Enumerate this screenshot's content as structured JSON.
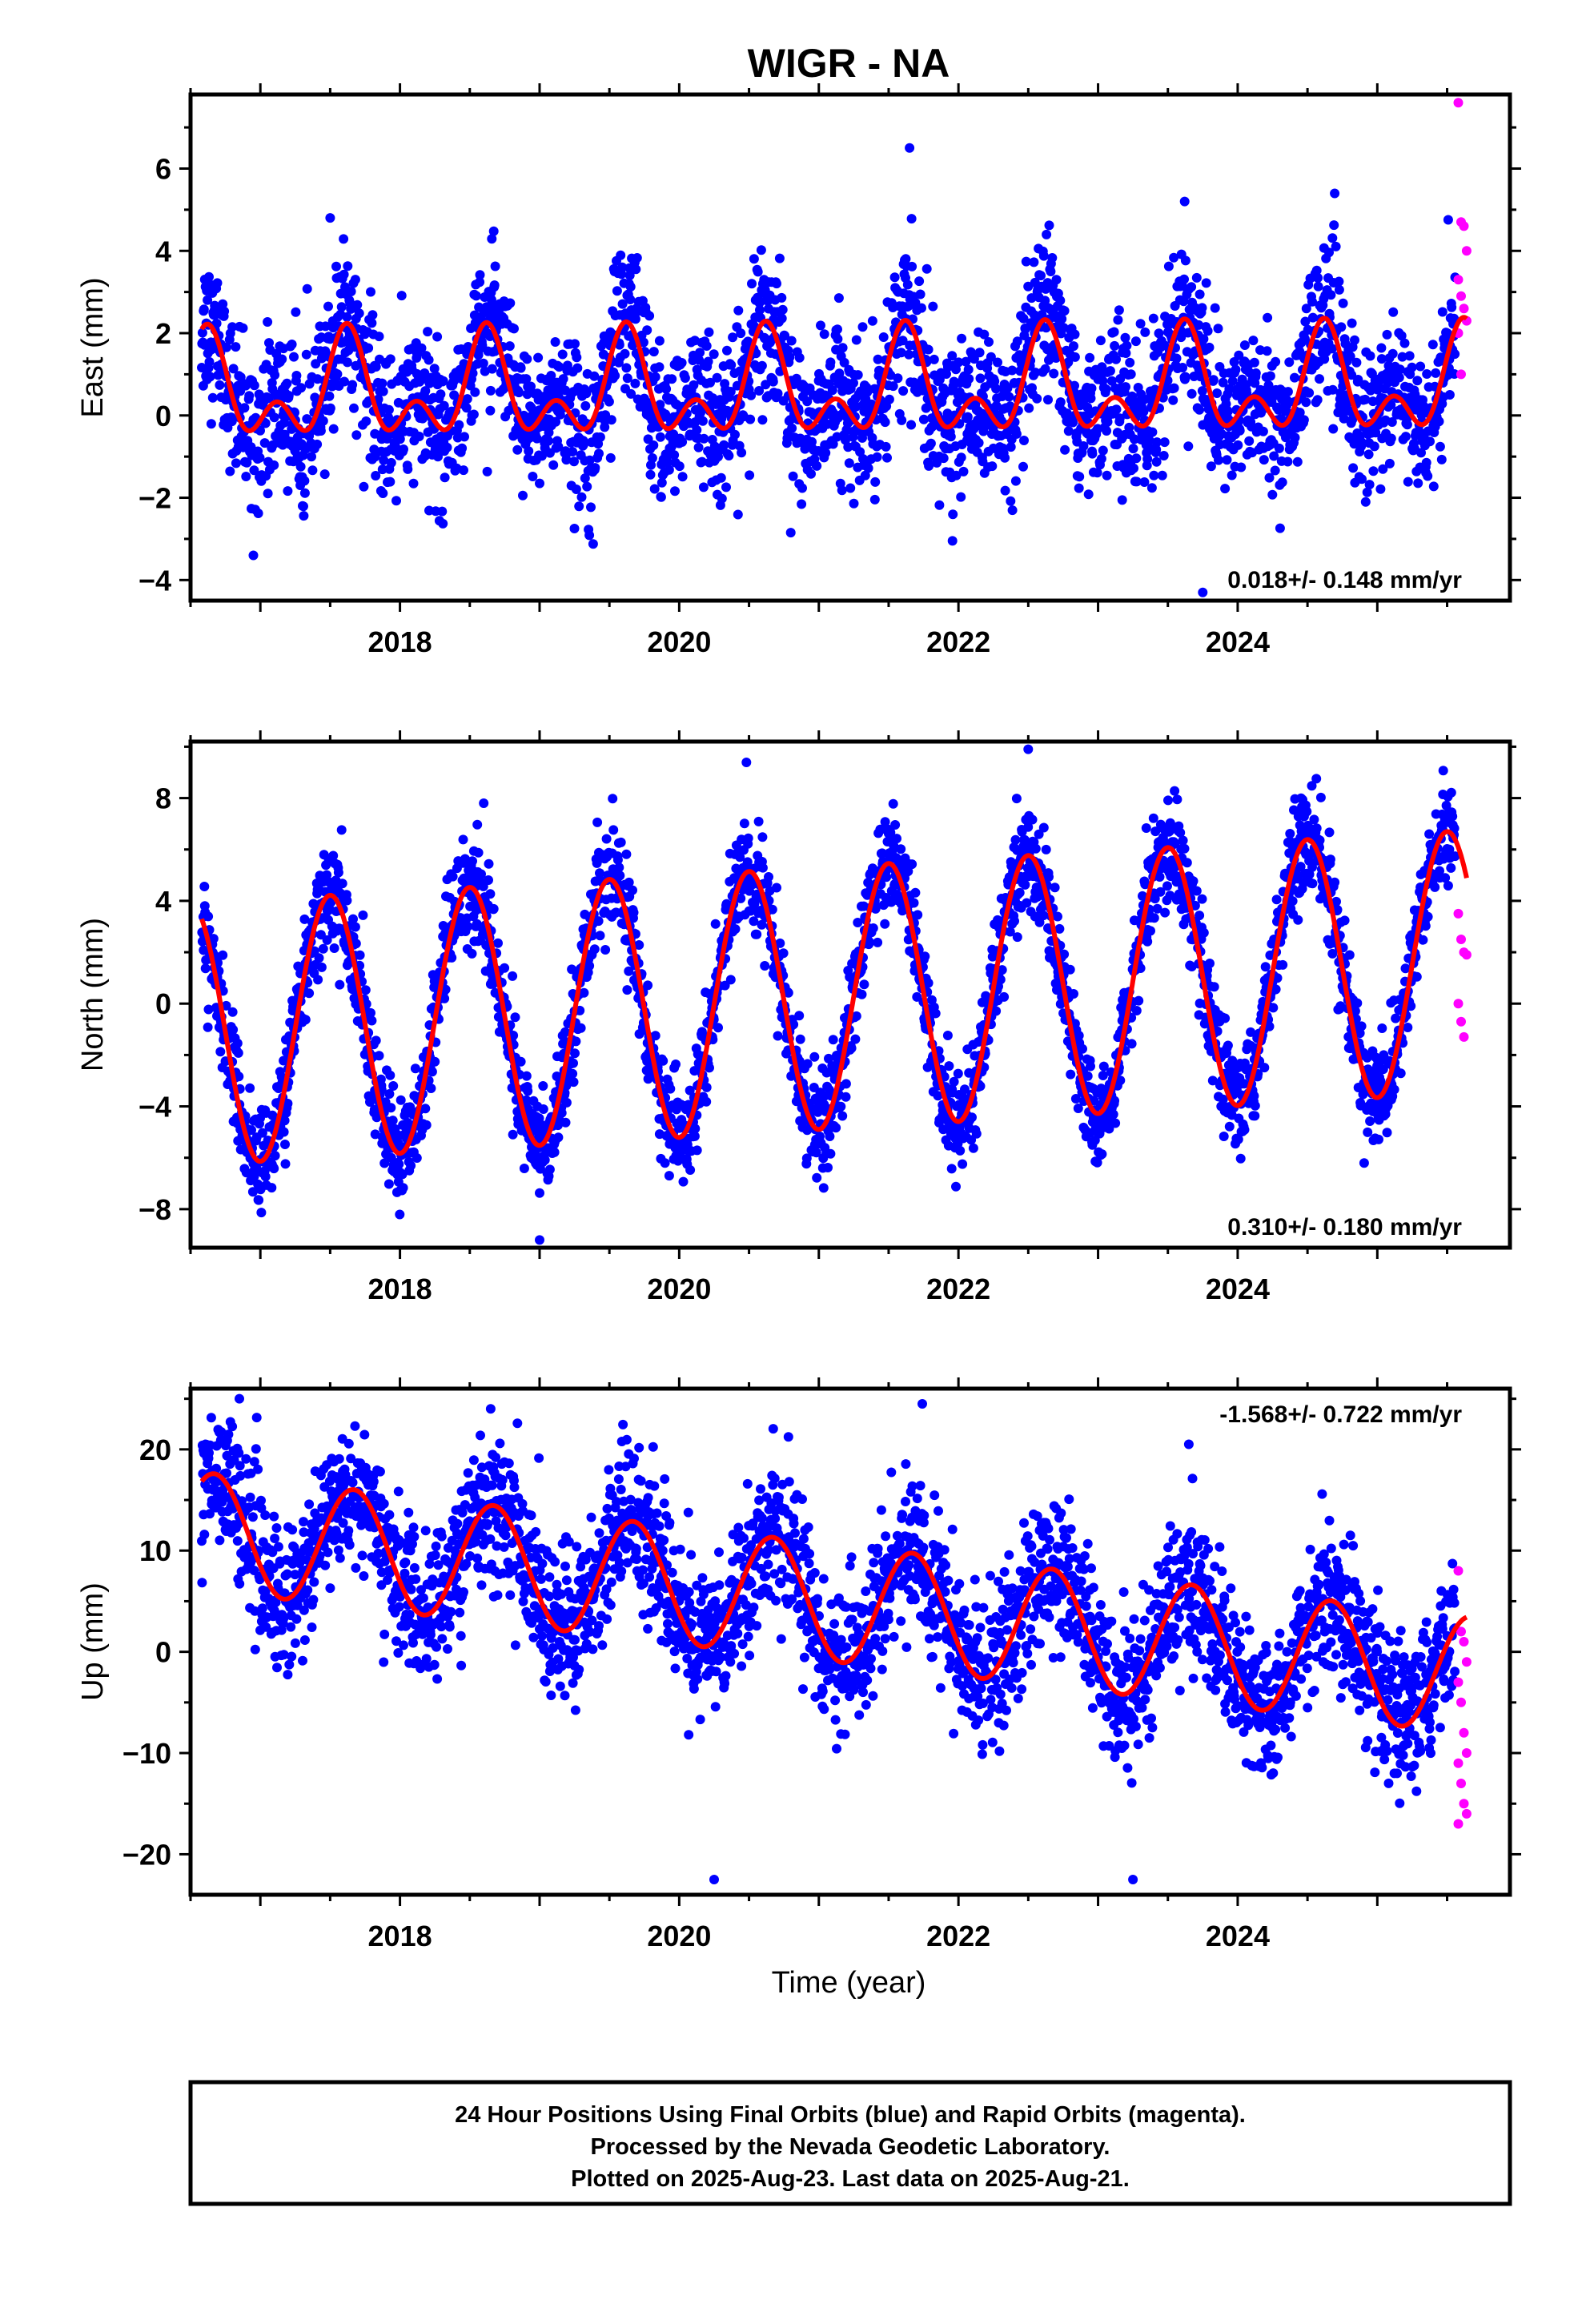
{
  "title": "WIGR - NA",
  "xlabel": "Time (year)",
  "colors": {
    "final": "#0000ff",
    "rapid": "#ff00ff",
    "fit": "#ff0000"
  },
  "footer": {
    "line1": "24 Hour Positions Using Final Orbits (blue) and Rapid Orbits (magenta).",
    "line2": "Processed by the Nevada Geodetic Laboratory.",
    "line3": "Plotted on 2025-Aug-23. Last data on 2025-Aug-21."
  },
  "chart_data": [
    {
      "type": "scatter",
      "component": "east",
      "ylabel": "East (mm)",
      "rate_label": "0.018+/- 0.148 mm/yr",
      "rate_position": "bottom-right",
      "xlim": [
        2016.5,
        2025.95
      ],
      "ylim": [
        -4.5,
        7.8
      ],
      "xticks": [
        2018,
        2020,
        2022,
        2024
      ],
      "yticks": [
        -4,
        -2,
        0,
        2,
        4,
        6
      ],
      "x_start": 2016.58,
      "final_end": 2025.56,
      "rapid_x_range": [
        2025.58,
        2025.64
      ],
      "fit": {
        "offset": 0.6,
        "trend_mm_per_yr": 0.018,
        "annual_amp": 0.95,
        "annual_peak": 0.62,
        "semiannual_amp": 0.75,
        "semiannual_peak": 0.62
      },
      "scatter_sd": 0.9,
      "rapid_values": [
        7.6,
        4.7,
        4.6,
        4.0,
        3.3,
        2.9,
        2.6,
        2.3,
        2.0,
        1.0
      ],
      "notable_points": [
        [
          2021.65,
          6.5
        ],
        [
          2023.62,
          5.2
        ],
        [
          2017.5,
          4.8
        ],
        [
          2016.95,
          -3.4
        ],
        [
          2023.75,
          -4.3
        ]
      ],
      "grid": false
    },
    {
      "type": "scatter",
      "component": "north",
      "ylabel": "North (mm)",
      "rate_label": "0.310+/- 0.180 mm/yr",
      "rate_position": "bottom-right",
      "xlim": [
        2016.5,
        2025.95
      ],
      "ylim": [
        -9.5,
        10.2
      ],
      "xticks": [
        2018,
        2020,
        2022,
        2024
      ],
      "yticks": [
        -8,
        -4,
        0,
        4,
        8
      ],
      "x_start": 2016.58,
      "final_end": 2025.56,
      "rapid_x_range": [
        2025.58,
        2025.64
      ],
      "fit": {
        "offset": 0.2,
        "trend_mm_per_yr": 0.31,
        "annual_amp": 5.1,
        "annual_peak": 0.5,
        "semiannual_amp": 0.0,
        "semiannual_peak": 0.5
      },
      "scatter_sd": 1.0,
      "rapid_values": [
        3.5,
        2.5,
        2.0,
        1.9,
        0.0,
        -0.7,
        -1.3
      ],
      "notable_points": [
        [
          2022.5,
          9.9
        ],
        [
          2019.0,
          -9.2
        ],
        [
          2018.6,
          7.8
        ]
      ],
      "grid": false
    },
    {
      "type": "scatter",
      "component": "up",
      "ylabel": "Up (mm)",
      "rate_label": "-1.568+/- 0.722 mm/yr",
      "rate_position": "top-right",
      "xlim": [
        2016.5,
        2025.95
      ],
      "ylim": [
        -24,
        26
      ],
      "xticks": [
        2018,
        2020,
        2022,
        2024
      ],
      "yticks": [
        -20,
        -10,
        0,
        10,
        20
      ],
      "x_start": 2016.58,
      "final_end": 2025.56,
      "rapid_x_range": [
        2025.58,
        2025.64
      ],
      "fit": {
        "offset": 5.0,
        "trend_mm_per_yr": -1.568,
        "annual_amp": 5.8,
        "annual_peak": 0.67,
        "semiannual_amp": 0.0,
        "semiannual_peak": 0.67
      },
      "scatter_sd": 3.6,
      "rapid_values": [
        8.0,
        2.0,
        1.0,
        -1.0,
        -3.0,
        -5.0,
        -8.0,
        -10.0,
        -11.0,
        -13.0,
        -15.0,
        -16.0,
        -17.0
      ],
      "notable_points": [
        [
          2016.85,
          25.0
        ],
        [
          2018.65,
          24.0
        ],
        [
          2020.25,
          -22.5
        ],
        [
          2023.25,
          -22.5
        ],
        [
          2023.65,
          20.5
        ]
      ],
      "grid": false
    }
  ]
}
